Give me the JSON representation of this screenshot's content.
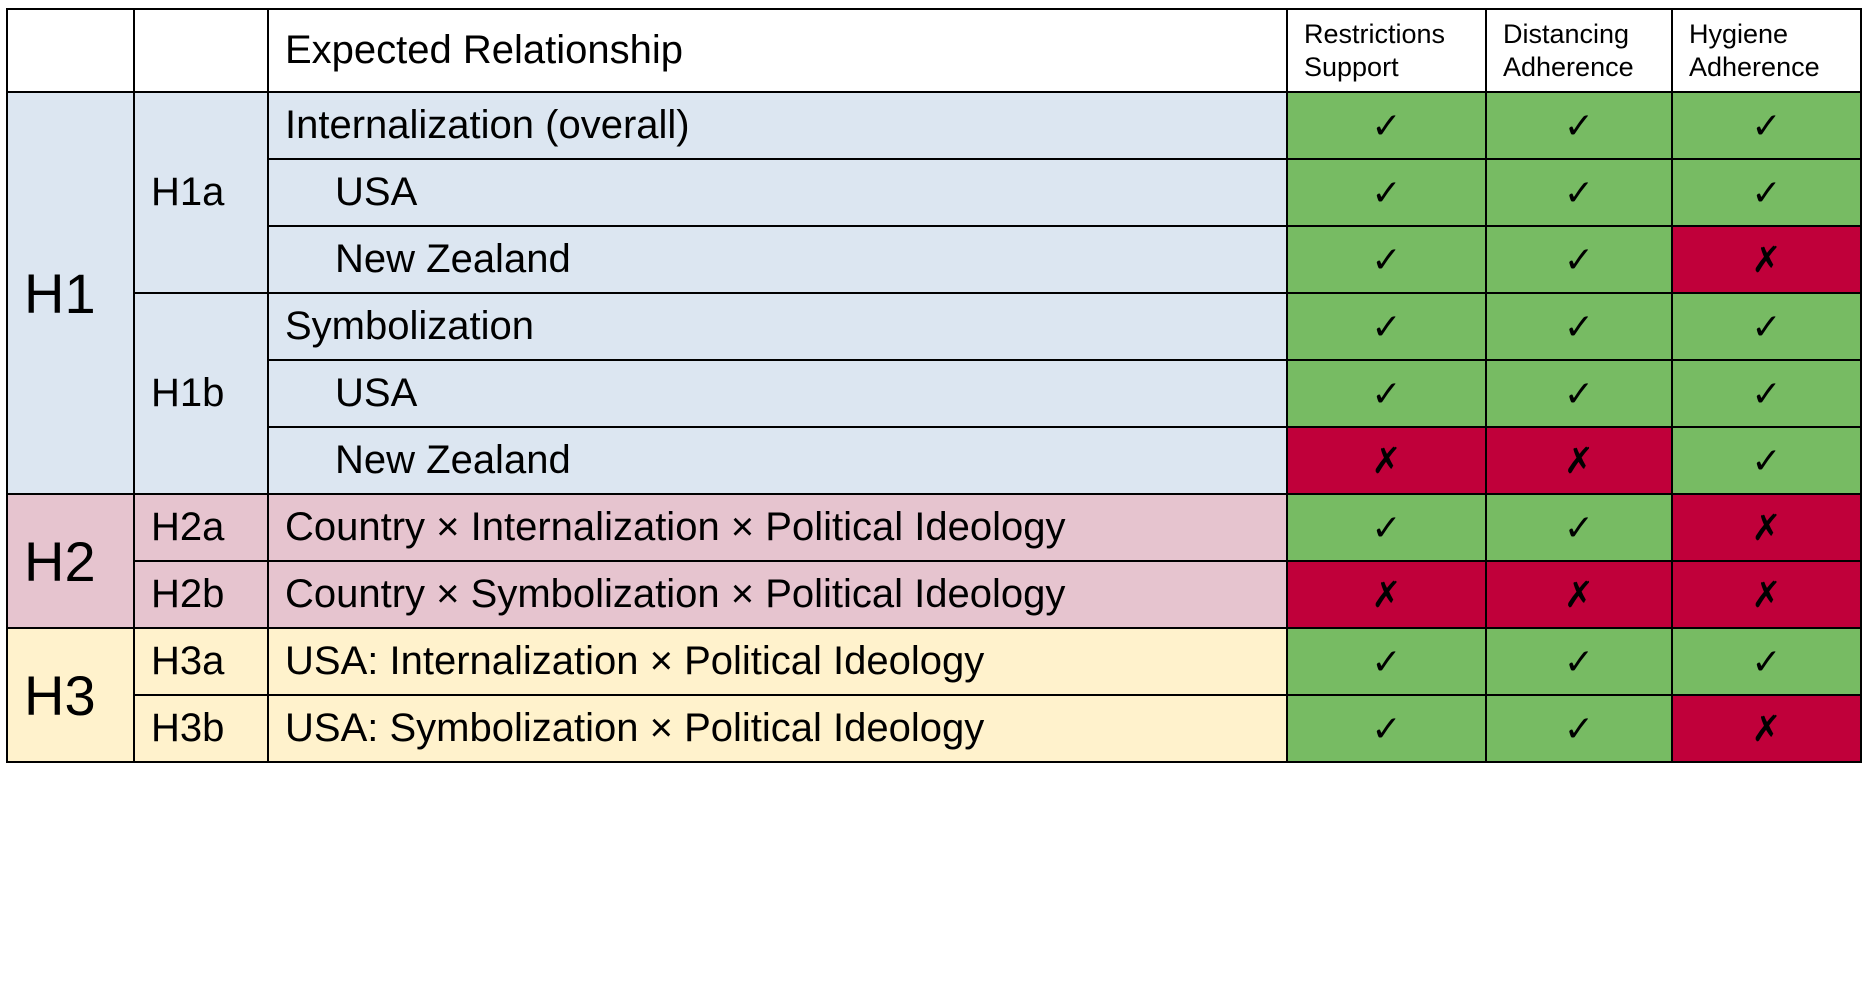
{
  "colors": {
    "h1_bg": "#dce6f1",
    "h2_bg": "#e6c4cf",
    "h3_bg": "#fff2cc",
    "supported_bg": "#77bb63",
    "not_supported_bg": "#c0003a"
  },
  "header": {
    "relationship": "Expected Relationship",
    "col1_line1": "Restrictions",
    "col1_line2": "Support",
    "col2_line1": "Distancing",
    "col2_line2": "Adherence",
    "col3_line1": "Hygiene",
    "col3_line2": "Adherence"
  },
  "symbols": {
    "yes": "✓",
    "no": "✗"
  },
  "groups": {
    "h1": "H1",
    "h2": "H2",
    "h3": "H3"
  },
  "subgroups": {
    "h1a": "H1a",
    "h1b": "H1b",
    "h2a": "H2a",
    "h2b": "H2b",
    "h3a": "H3a",
    "h3b": "H3b"
  },
  "rows": [
    {
      "relationship": "Internalization (overall)",
      "results": [
        "yes",
        "yes",
        "yes"
      ]
    },
    {
      "relationship": "USA",
      "results": [
        "yes",
        "yes",
        "yes"
      ]
    },
    {
      "relationship": "New Zealand",
      "results": [
        "yes",
        "yes",
        "no"
      ]
    },
    {
      "relationship": "Symbolization",
      "results": [
        "yes",
        "yes",
        "yes"
      ]
    },
    {
      "relationship": "USA",
      "results": [
        "yes",
        "yes",
        "yes"
      ]
    },
    {
      "relationship": "New Zealand",
      "results": [
        "no",
        "no",
        "yes"
      ]
    },
    {
      "relationship": "Country × Internalization × Political Ideology",
      "results": [
        "yes",
        "yes",
        "no"
      ]
    },
    {
      "relationship": "Country × Symbolization × Political Ideology",
      "results": [
        "no",
        "no",
        "no"
      ]
    },
    {
      "relationship": "USA: Internalization × Political Ideology",
      "results": [
        "yes",
        "yes",
        "yes"
      ]
    },
    {
      "relationship": "USA: Symbolization × Political Ideology",
      "results": [
        "yes",
        "yes",
        "no"
      ]
    }
  ]
}
